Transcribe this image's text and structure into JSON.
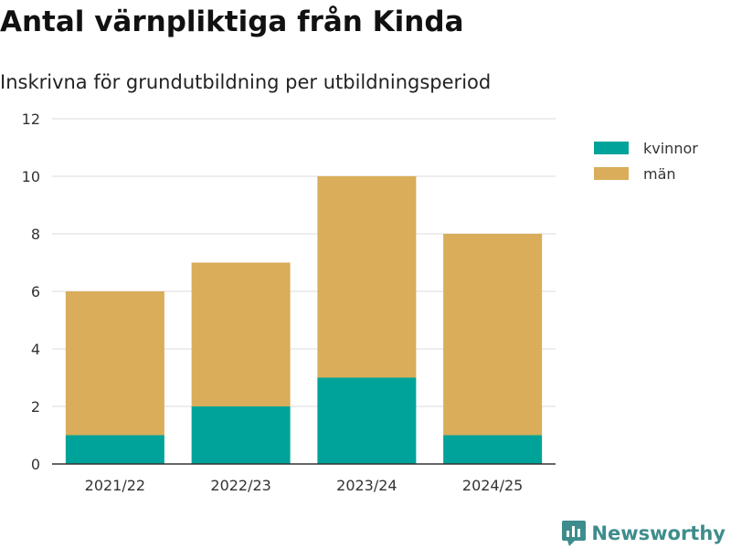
{
  "header": {
    "title": "Antal värnpliktiga från Kinda",
    "subtitle": "Inskrivna för grundutbildning per utbildningsperiod"
  },
  "brand": {
    "name": "Newsworthy",
    "icon": "newsworthy-logo-icon",
    "color": "#3e8d8c"
  },
  "chart_data": {
    "type": "bar",
    "stacked": true,
    "categories": [
      "2021/22",
      "2022/23",
      "2023/24",
      "2024/25"
    ],
    "series": [
      {
        "name": "kvinnor",
        "color": "#00a39a",
        "values": [
          1,
          2,
          3,
          1
        ]
      },
      {
        "name": "män",
        "color": "#d9ad5a",
        "values": [
          5,
          5,
          7,
          7
        ]
      }
    ],
    "ylim": [
      0,
      12
    ],
    "yticks": [
      "0",
      "2",
      "4",
      "6",
      "8",
      "10",
      "12"
    ],
    "grid": true,
    "legend_position": "right"
  }
}
